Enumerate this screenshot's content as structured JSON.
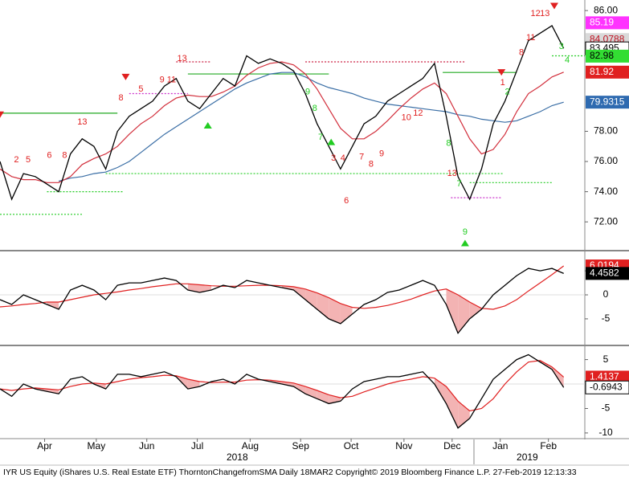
{
  "chart_data": [
    {
      "type": "line",
      "x": [
        0,
        1,
        2,
        3,
        4,
        5,
        6,
        7,
        8,
        9,
        10,
        11,
        12,
        13,
        14,
        15,
        16,
        17,
        18,
        19,
        20,
        21,
        22,
        23,
        24,
        25,
        26,
        27,
        28,
        29,
        30,
        31,
        32,
        33,
        34,
        35,
        36,
        37,
        38,
        39,
        40,
        41,
        42,
        43,
        44,
        45,
        46,
        47,
        48
      ],
      "xlim": [
        0,
        49.8
      ],
      "ylim": [
        70.2,
        86.7
      ],
      "yticks": [
        {
          "value": 72,
          "label": "72.00"
        },
        {
          "value": 74,
          "label": "74.00"
        },
        {
          "value": 76,
          "label": "76.00"
        },
        {
          "value": 78,
          "label": "78.00"
        },
        {
          "value": 86,
          "label": "86.00"
        }
      ],
      "series": [
        {
          "color": "#000000",
          "values": [
            76,
            73.5,
            75.2,
            75,
            74.5,
            74,
            76.5,
            77.5,
            77,
            75.5,
            78,
            79,
            79.5,
            80,
            81,
            81.5,
            80,
            79.5,
            80.5,
            81.5,
            81,
            83,
            82.5,
            82.8,
            82.5,
            82,
            80.5,
            78.5,
            77,
            75.5,
            77,
            78.5,
            79,
            80,
            80.5,
            81,
            81.5,
            82.5,
            79,
            75,
            73.5,
            75.5,
            78.5,
            80,
            82,
            84,
            84.5,
            85,
            83.495
          ]
        },
        {
          "color": "#d22f3c",
          "values": [
            75.5,
            75,
            74.8,
            74.8,
            74.6,
            74.6,
            75,
            75.8,
            76.2,
            76.5,
            77,
            77.8,
            78.5,
            79,
            79.7,
            80.2,
            80.4,
            80.3,
            80.3,
            80.6,
            81,
            81.7,
            82.2,
            82.5,
            82.6,
            82.4,
            81.8,
            80.8,
            79.5,
            78.2,
            77.5,
            77.5,
            78,
            78.7,
            79.5,
            80.2,
            80.8,
            81.2,
            80.5,
            79,
            77.5,
            76.5,
            76.8,
            77.8,
            79.3,
            80.5,
            81,
            81.6,
            81.92
          ]
        },
        {
          "color": "#3a6ea5",
          "values": [
            null,
            null,
            null,
            null,
            null,
            74.7,
            74.9,
            75,
            75.2,
            75.3,
            75.6,
            76,
            76.6,
            77.2,
            77.8,
            78.3,
            78.8,
            79.3,
            79.8,
            80.3,
            80.8,
            81.2,
            81.5,
            81.8,
            81.9,
            81.9,
            81.6,
            81.2,
            80.9,
            80.7,
            80.5,
            80.2,
            80,
            79.8,
            79.7,
            79.6,
            79.5,
            79.4,
            79.3,
            79.1,
            79,
            78.8,
            78.7,
            78.6,
            78.7,
            79,
            79.3,
            79.7,
            79.9315
          ]
        }
      ],
      "levels": [
        {
          "value": 79.2,
          "from": 0,
          "to": 10,
          "color": "#22aa22",
          "style": "solid"
        },
        {
          "value": 81.8,
          "from": 16,
          "to": 28,
          "color": "#22aa22",
          "style": "solid"
        },
        {
          "value": 81.9,
          "from": 37.7,
          "to": 44,
          "color": "#22aa22",
          "style": "solid"
        },
        {
          "value": 82.6,
          "from": 15,
          "to": 18,
          "color": "#cc2244",
          "style": "dotted"
        },
        {
          "value": 82.6,
          "from": 26,
          "to": 39.6,
          "color": "#cc2244",
          "style": "dotted"
        },
        {
          "value": 75.2,
          "from": 9,
          "to": 42.8,
          "color": "#22cc22",
          "style": "dotted"
        },
        {
          "value": 74,
          "from": 4,
          "to": 10.5,
          "color": "#22cc22",
          "style": "dotted"
        },
        {
          "value": 72.5,
          "from": 0,
          "to": 7,
          "color": "#22cc22",
          "style": "dotted"
        },
        {
          "value": 73.6,
          "from": 38.4,
          "to": 42.7,
          "color": "#cc33cc",
          "style": "dotted"
        },
        {
          "value": 80.5,
          "from": 11,
          "to": 16,
          "color": "#cc33cc",
          "style": "dotted"
        },
        {
          "value": 74.6,
          "from": 40,
          "to": 47,
          "color": "#22cc22",
          "style": "dotted"
        },
        {
          "value": 83,
          "from": 47,
          "to": 49.8,
          "color": "#22cc22",
          "style": "dotted"
        }
      ],
      "annotations": [
        {
          "text": "2",
          "x": 1.4,
          "y": 76.1,
          "color": "#e02020"
        },
        {
          "text": "5",
          "x": 2.4,
          "y": 76.1,
          "color": "#e02020"
        },
        {
          "text": "6",
          "x": 4.2,
          "y": 76.4,
          "color": "#e02020"
        },
        {
          "text": "8",
          "x": 5.5,
          "y": 76.4,
          "color": "#e02020"
        },
        {
          "text": "13",
          "x": 7,
          "y": 78.6,
          "color": "#e02020"
        },
        {
          "text": "8",
          "x": 10.3,
          "y": 80.2,
          "color": "#e02020"
        },
        {
          "text": "5",
          "x": 12,
          "y": 80.8,
          "color": "#e02020"
        },
        {
          "text": "9",
          "x": 13.8,
          "y": 81.4,
          "color": "#e02020"
        },
        {
          "text": "11",
          "x": 14.6,
          "y": 81.4,
          "color": "#e02020"
        },
        {
          "text": "13",
          "x": 15.5,
          "y": 82.8,
          "color": "#e02020"
        },
        {
          "text": "9",
          "x": 26.2,
          "y": 80.6,
          "color": "#22cc22"
        },
        {
          "text": "8",
          "x": 26.8,
          "y": 79.5,
          "color": "#22cc22"
        },
        {
          "text": "7",
          "x": 27.3,
          "y": 77.6,
          "color": "#22cc22"
        },
        {
          "text": "3",
          "x": 28.4,
          "y": 76.2,
          "color": "#e02020"
        },
        {
          "text": "4",
          "x": 29.2,
          "y": 76.2,
          "color": "#e02020"
        },
        {
          "text": "6",
          "x": 29.5,
          "y": 73.4,
          "color": "#e02020"
        },
        {
          "text": "7",
          "x": 30.8,
          "y": 76.3,
          "color": "#e02020"
        },
        {
          "text": "8",
          "x": 31.6,
          "y": 75.8,
          "color": "#e02020"
        },
        {
          "text": "9",
          "x": 32.5,
          "y": 76.5,
          "color": "#e02020"
        },
        {
          "text": "10",
          "x": 34.6,
          "y": 78.9,
          "color": "#e02020"
        },
        {
          "text": "12",
          "x": 35.6,
          "y": 79.2,
          "color": "#e02020"
        },
        {
          "text": "8",
          "x": 38.2,
          "y": 77.2,
          "color": "#22cc22"
        },
        {
          "text": "13",
          "x": 38.5,
          "y": 75.2,
          "color": "#e02020"
        },
        {
          "text": "7",
          "x": 39.1,
          "y": 74.5,
          "color": "#22cc22"
        },
        {
          "text": "9",
          "x": 39.6,
          "y": 71.3,
          "color": "#22cc22"
        },
        {
          "text": "1",
          "x": 42.8,
          "y": 81.2,
          "color": "#e02020"
        },
        {
          "text": "2",
          "x": 43.2,
          "y": 80.6,
          "color": "#22cc22"
        },
        {
          "text": "8",
          "x": 44.4,
          "y": 83.2,
          "color": "#e02020"
        },
        {
          "text": "11",
          "x": 45.2,
          "y": 84.2,
          "color": "#e02020"
        },
        {
          "text": "12",
          "x": 45.6,
          "y": 85.8,
          "color": "#e02020"
        },
        {
          "text": "13",
          "x": 46.4,
          "y": 85.8,
          "color": "#e02020"
        },
        {
          "text": "3",
          "x": 47.8,
          "y": 83.6,
          "color": "#22cc22"
        },
        {
          "text": "4",
          "x": 48.3,
          "y": 82.7,
          "color": "#22cc22"
        }
      ],
      "arrows": [
        {
          "x": 0,
          "y": 79.1,
          "dir": "down"
        },
        {
          "x": 10.7,
          "y": 81.6,
          "dir": "down"
        },
        {
          "x": 17.7,
          "y": 78.4,
          "dir": "up"
        },
        {
          "x": 28.2,
          "y": 77.3,
          "dir": "up"
        },
        {
          "x": 39.6,
          "y": 70.6,
          "dir": "up"
        },
        {
          "x": 42.7,
          "y": 81.9,
          "dir": "down"
        },
        {
          "x": 47.2,
          "y": 86.3,
          "dir": "down"
        }
      ],
      "right_labels": [
        {
          "label": "85.19",
          "value": 85.19,
          "bg": "#ff33ff",
          "fg": "#ffffff"
        },
        {
          "label": "84.0788",
          "value": 84.0788,
          "bg": "#d9d9d9",
          "fg": "#c01020"
        },
        {
          "label": "83.495",
          "value": 83.495,
          "bg": "#ffffff",
          "fg": "#000000"
        },
        {
          "label": "82.98",
          "value": 82.98,
          "bg": "#33dd33",
          "fg": "#000000"
        },
        {
          "label": "81.92",
          "value": 81.92,
          "bg": "#e02020",
          "fg": "#ffffff"
        },
        {
          "label": "79.9315",
          "value": 79.9315,
          "bg": "#2e6ab0",
          "fg": "#ffffff"
        }
      ]
    },
    {
      "type": "line",
      "x": [
        0,
        1,
        2,
        3,
        4,
        5,
        6,
        7,
        8,
        9,
        10,
        11,
        12,
        13,
        14,
        15,
        16,
        17,
        18,
        19,
        20,
        21,
        22,
        23,
        24,
        25,
        26,
        27,
        28,
        29,
        30,
        31,
        32,
        33,
        34,
        35,
        36,
        37,
        38,
        39,
        40,
        41,
        42,
        43,
        44,
        45,
        46,
        47,
        48
      ],
      "xlim": [
        0,
        49.8
      ],
      "ylim": [
        -10.2,
        8.7
      ],
      "yticks": [
        -5,
        0,
        5
      ],
      "fill": "#f3b3b3",
      "series": [
        {
          "color": "#000000",
          "values": [
            -1,
            -2,
            0,
            -1,
            -2,
            -3,
            1,
            2,
            1,
            -1,
            2,
            2.5,
            2.5,
            3,
            3.5,
            3,
            1,
            0.5,
            1,
            2,
            1.5,
            3,
            2.5,
            2,
            1.5,
            1,
            -1,
            -3,
            -5,
            -6,
            -4,
            -2,
            -1,
            0.5,
            1,
            2,
            3,
            2,
            -2,
            -8,
            -5,
            -3,
            0,
            2,
            4,
            5.5,
            5,
            5.5,
            4.4582
          ]
        },
        {
          "color": "#e02020",
          "values": [
            -2.5,
            -2.3,
            -2,
            -1.8,
            -1.5,
            -1.5,
            -1,
            -0.5,
            0,
            0.3,
            0.6,
            1,
            1.3,
            1.7,
            2,
            2.3,
            2.3,
            2.1,
            1.9,
            1.8,
            1.8,
            1.9,
            2,
            2,
            1.9,
            1.7,
            1.2,
            0.4,
            -0.6,
            -1.8,
            -2.6,
            -2.8,
            -2.6,
            -2.2,
            -1.6,
            -0.9,
            0,
            0.8,
            1.2,
            0,
            -1.5,
            -2.8,
            -3,
            -2.3,
            -1,
            0.8,
            2.5,
            4.2,
            6.0194
          ]
        }
      ],
      "right_labels": [
        {
          "label": "6.0194",
          "value": 6.0194,
          "bg": "#e02020",
          "fg": "#ffffff"
        },
        {
          "label": "4.4582",
          "value": 4.4582,
          "bg": "#000000",
          "fg": "#ffffff"
        }
      ]
    },
    {
      "type": "line",
      "x": [
        0,
        1,
        2,
        3,
        4,
        5,
        6,
        7,
        8,
        9,
        10,
        11,
        12,
        13,
        14,
        15,
        16,
        17,
        18,
        19,
        20,
        21,
        22,
        23,
        24,
        25,
        26,
        27,
        28,
        29,
        30,
        31,
        32,
        33,
        34,
        35,
        36,
        37,
        38,
        39,
        40,
        41,
        42,
        43,
        44,
        45,
        46,
        47,
        48
      ],
      "xlim": [
        0,
        49.8
      ],
      "ylim": [
        -11,
        7.4
      ],
      "yticks": [
        -10,
        -5,
        0,
        5
      ],
      "fill": "#f3b3b3",
      "series": [
        {
          "color": "#000000",
          "values": [
            -1,
            -2.5,
            0,
            -1,
            -1.5,
            -2,
            1,
            1.5,
            0,
            -1,
            2,
            2,
            1.5,
            2,
            2.5,
            1.5,
            -1,
            -0.5,
            0.5,
            1,
            0,
            2,
            1,
            0.5,
            0,
            -0.5,
            -2,
            -3,
            -4,
            -3.5,
            -1,
            0.5,
            1,
            1.5,
            1.5,
            2,
            2.5,
            0,
            -4,
            -9,
            -7,
            -3,
            1,
            3,
            5,
            6,
            4.5,
            3,
            -0.6943
          ]
        },
        {
          "color": "#e02020",
          "values": [
            -1,
            -1.3,
            -1,
            -0.8,
            -1,
            -1.2,
            -0.5,
            0,
            0.2,
            0,
            0.5,
            1,
            1.3,
            1.5,
            1.8,
            1.7,
            1,
            0.5,
            0.3,
            0.4,
            0.4,
            0.8,
            0.9,
            0.8,
            0.5,
            0.2,
            -0.5,
            -1.3,
            -2.2,
            -2.8,
            -2.5,
            -1.6,
            -0.8,
            0,
            0.6,
            1,
            1.5,
            1.2,
            -0.5,
            -3.5,
            -5.5,
            -5,
            -3,
            0,
            2.5,
            4.5,
            4.8,
            3.5,
            1.4137
          ]
        }
      ],
      "right_labels": [
        {
          "label": "1.4137",
          "value": 1.4137,
          "bg": "#e02020",
          "fg": "#ffffff"
        },
        {
          "label": "-0.6943",
          "value": -0.6943,
          "bg": "#ffffff",
          "fg": "#000000"
        }
      ],
      "xticks": [
        {
          "value": 3.8,
          "label": "Apr"
        },
        {
          "value": 8.2,
          "label": "May"
        },
        {
          "value": 12.5,
          "label": "Jun"
        },
        {
          "value": 16.8,
          "label": "Jul"
        },
        {
          "value": 21.3,
          "label": "Aug"
        },
        {
          "value": 25.6,
          "label": "Sep"
        },
        {
          "value": 29.9,
          "label": "Oct"
        },
        {
          "value": 34.4,
          "label": "Nov"
        },
        {
          "value": 38.5,
          "label": "Dec"
        },
        {
          "value": 42.6,
          "label": "Jan"
        },
        {
          "value": 46.7,
          "label": "Feb"
        }
      ],
      "year_labels": [
        {
          "value": 20.2,
          "label": "2018"
        },
        {
          "value": 44.9,
          "label": "2019"
        }
      ]
    }
  ],
  "footer": "IYR US Equity (iShares U.S. Real Estate ETF) ThorntonChangefromSMA  Daily 18MAR2  Copyright© 2019 Bloomberg Finance L.P.   27-Feb-2019 12:13:33"
}
